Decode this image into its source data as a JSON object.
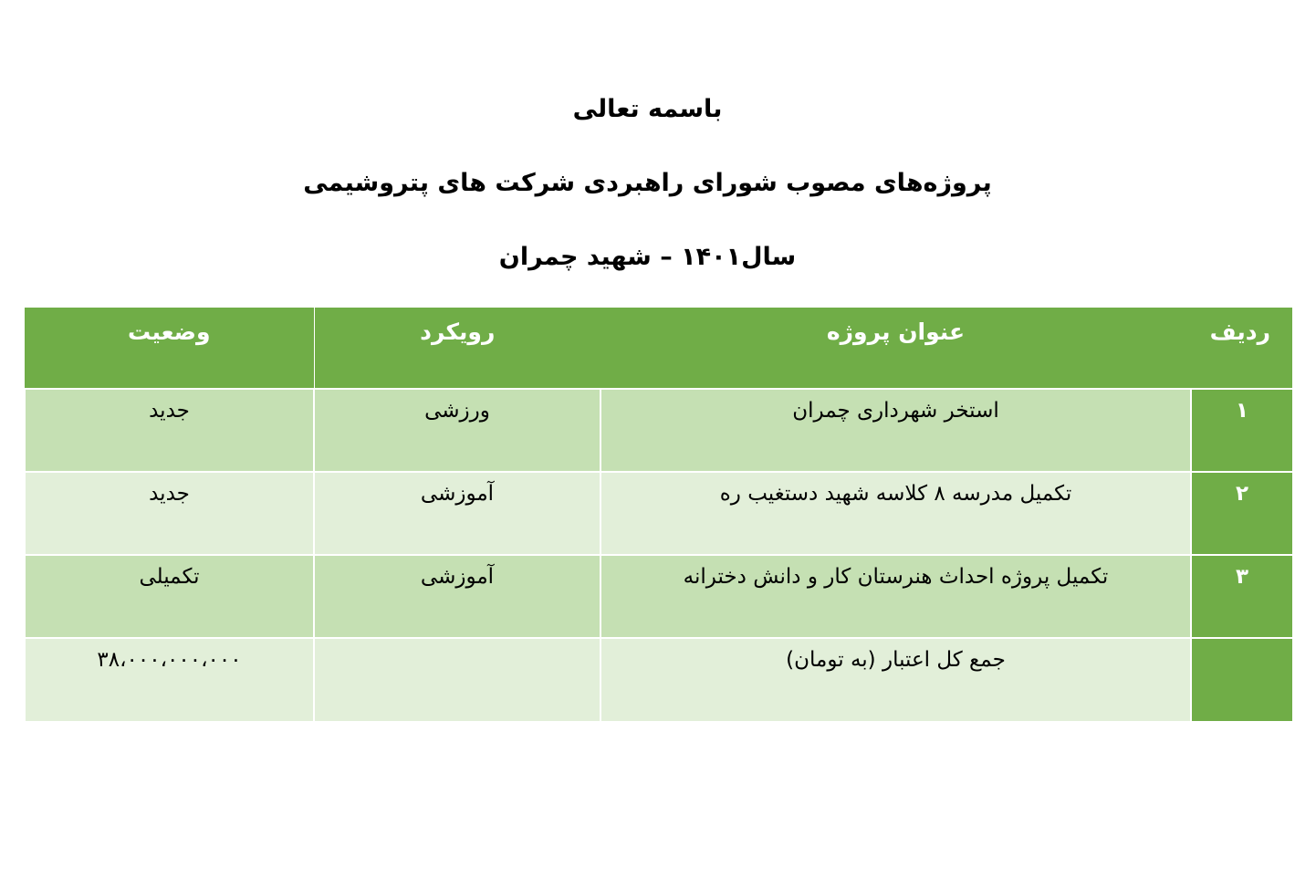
{
  "titles": [
    "باسمه تعالی",
    "پروژه‌های مصوب شورای راهبردی شرکت های پتروشیمی",
    "سال۱۴۰۱ – شهید چمران"
  ],
  "table": {
    "headers": [
      "ردیف",
      "عنوان پروژه",
      "رویکرد",
      "وضعیت"
    ],
    "rows": [
      [
        "۱",
        "استخر شهرداری چمران",
        "ورزشی",
        "جدید"
      ],
      [
        "۲",
        "تکمیل مدرسه ۸ کلاسه شهید دستغیب ره",
        "آموزشی",
        "جدید"
      ],
      [
        "۳",
        "تکمیل پروژه احداث هنرستان کار و دانش دخترانه",
        "آموزشی",
        "تکمیلی"
      ],
      [
        "",
        "جمع کل اعتبار (به تومان)",
        "",
        "۳۸،۰۰۰،۰۰۰،۰۰۰"
      ]
    ]
  },
  "colors": {
    "header": "#70AD47",
    "row_dark": "#C5E0B3",
    "row_light": "#E2EFD9"
  }
}
